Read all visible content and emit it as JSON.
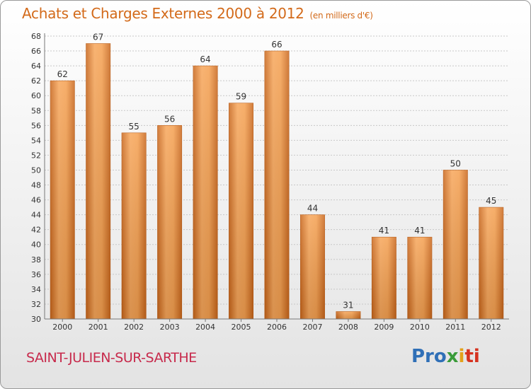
{
  "header": {
    "title": "Achats et Charges Externes 2000 à 2012",
    "subtitle": "(en milliers d'€)"
  },
  "footer": {
    "commune": "SAINT-JULIEN-SUR-SARTHE",
    "logo": [
      "Pro",
      "x",
      "i",
      "ti"
    ]
  },
  "colors": {
    "bar_light": "#f7a65a",
    "bar_dark": "#c9661b",
    "title": "#d36a1a",
    "commune": "#c72a4c"
  },
  "chart_data": {
    "type": "bar",
    "title": "Achats et Charges Externes 2000 à 2012",
    "subtitle": "(en milliers d'€)",
    "categories": [
      "2000",
      "2001",
      "2002",
      "2003",
      "2004",
      "2005",
      "2006",
      "2007",
      "2008",
      "2009",
      "2010",
      "2011",
      "2012"
    ],
    "values": [
      62,
      67,
      55,
      56,
      64,
      59,
      66,
      44,
      31,
      41,
      41,
      50,
      45
    ],
    "xlabel": "",
    "ylabel": "",
    "ylim": [
      30,
      68
    ],
    "yticks": [
      30,
      32,
      34,
      36,
      38,
      40,
      42,
      44,
      46,
      48,
      50,
      52,
      54,
      56,
      58,
      60,
      62,
      64,
      66,
      68
    ],
    "grid": true
  }
}
